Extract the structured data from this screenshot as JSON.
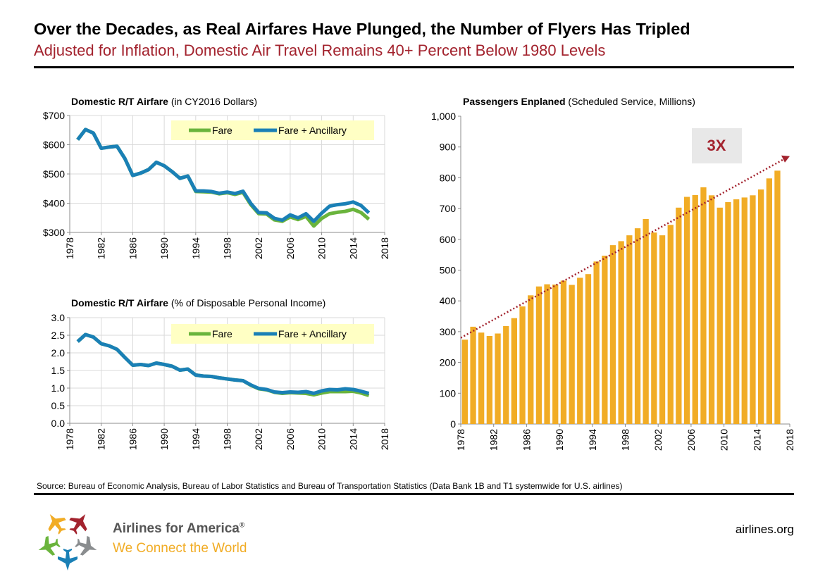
{
  "header": {
    "title": "Over the Decades, as Real Airfares Have Plunged, the Number of Flyers Has Tripled",
    "subtitle": "Adjusted for Inflation, Domestic Air Travel Remains 40+ Percent Below 1980 Levels"
  },
  "footer": {
    "source": "Source: Bureau of Economic Analysis, Bureau of Labor Statistics and Bureau of Transportation Statistics (Data Bank 1B and T1 systemwide for U.S. airlines)",
    "brand_name": "Airlines for America",
    "brand_mark": "®",
    "tagline": "We Connect the World",
    "site": "airlines.org"
  },
  "colors": {
    "fare": "#6ab43c",
    "fare_ancillary": "#1a80b6",
    "bars": "#f1ac25",
    "trend": "#a3232e",
    "subtitle": "#a3232e",
    "legend_bg": "#ffffc4"
  },
  "chart_data": [
    {
      "type": "line",
      "title_bold": "Domestic R/T Airfare",
      "title_rest": " (in CY2016 Dollars)",
      "xlim": [
        1978,
        2018
      ],
      "x_ticks": [
        1978,
        1982,
        1986,
        1990,
        1994,
        1998,
        2002,
        2006,
        2010,
        2014,
        2018
      ],
      "ylim": [
        300,
        700
      ],
      "y_ticks": [
        300,
        400,
        500,
        600,
        700
      ],
      "y_tick_labels": [
        "$300",
        "$400",
        "$500",
        "$600",
        "$700"
      ],
      "grid": true,
      "legend": "top-right",
      "series": [
        {
          "name": "Fare",
          "x": [
            1979,
            1980,
            1981,
            1982,
            1983,
            1984,
            1985,
            1986,
            1987,
            1988,
            1989,
            1990,
            1991,
            1992,
            1993,
            1994,
            1995,
            1996,
            1997,
            1998,
            1999,
            2000,
            2001,
            2002,
            2003,
            2004,
            2005,
            2006,
            2007,
            2008,
            2009,
            2010,
            2011,
            2012,
            2013,
            2014,
            2015,
            2016
          ],
          "y": [
            617,
            652,
            640,
            588,
            592,
            595,
            553,
            495,
            503,
            515,
            540,
            528,
            508,
            485,
            493,
            440,
            439,
            438,
            432,
            436,
            430,
            437,
            395,
            364,
            363,
            343,
            338,
            353,
            344,
            355,
            322,
            348,
            364,
            369,
            372,
            379,
            368,
            345
          ]
        },
        {
          "name": "Fare + Ancillary",
          "x": [
            1979,
            1980,
            1981,
            1982,
            1983,
            1984,
            1985,
            1986,
            1987,
            1988,
            1989,
            1990,
            1991,
            1992,
            1993,
            1994,
            1995,
            1996,
            1997,
            1998,
            1999,
            2000,
            2001,
            2002,
            2003,
            2004,
            2005,
            2006,
            2007,
            2008,
            2009,
            2010,
            2011,
            2012,
            2013,
            2014,
            2015,
            2016
          ],
          "y": [
            617,
            652,
            640,
            588,
            592,
            595,
            553,
            495,
            503,
            515,
            540,
            528,
            508,
            485,
            493,
            442,
            442,
            440,
            434,
            438,
            433,
            441,
            399,
            368,
            367,
            348,
            342,
            360,
            350,
            364,
            338,
            366,
            390,
            395,
            398,
            404,
            392,
            367
          ]
        }
      ]
    },
    {
      "type": "line",
      "title_bold": "Domestic R/T Airfare",
      "title_rest": " (% of Disposable Personal Income)",
      "xlim": [
        1978,
        2018
      ],
      "x_ticks": [
        1978,
        1982,
        1986,
        1990,
        1994,
        1998,
        2002,
        2006,
        2010,
        2014,
        2018
      ],
      "ylim": [
        0,
        3
      ],
      "y_ticks": [
        0,
        0.5,
        1,
        1.5,
        2,
        2.5,
        3
      ],
      "y_tick_labels": [
        "0.0",
        "0.5",
        "1.0",
        "1.5",
        "2.0",
        "2.5",
        "3.0"
      ],
      "grid": true,
      "legend": "top-right",
      "series": [
        {
          "name": "Fare",
          "x": [
            1979,
            1980,
            1981,
            1982,
            1983,
            1984,
            1985,
            1986,
            1987,
            1988,
            1989,
            1990,
            1991,
            1992,
            1993,
            1994,
            1995,
            1996,
            1997,
            1998,
            1999,
            2000,
            2001,
            2002,
            2003,
            2004,
            2005,
            2006,
            2007,
            2008,
            2009,
            2010,
            2011,
            2012,
            2013,
            2014,
            2015,
            2016
          ],
          "y": [
            2.32,
            2.52,
            2.45,
            2.26,
            2.2,
            2.1,
            1.87,
            1.65,
            1.67,
            1.64,
            1.71,
            1.67,
            1.62,
            1.51,
            1.54,
            1.37,
            1.34,
            1.33,
            1.29,
            1.26,
            1.23,
            1.21,
            1.08,
            0.98,
            0.95,
            0.88,
            0.85,
            0.87,
            0.86,
            0.85,
            0.81,
            0.86,
            0.9,
            0.9,
            0.9,
            0.91,
            0.86,
            0.79
          ]
        },
        {
          "name": "Fare + Ancillary",
          "x": [
            1979,
            1980,
            1981,
            1982,
            1983,
            1984,
            1985,
            1986,
            1987,
            1988,
            1989,
            1990,
            1991,
            1992,
            1993,
            1994,
            1995,
            1996,
            1997,
            1998,
            1999,
            2000,
            2001,
            2002,
            2003,
            2004,
            2005,
            2006,
            2007,
            2008,
            2009,
            2010,
            2011,
            2012,
            2013,
            2014,
            2015,
            2016
          ],
          "y": [
            2.32,
            2.52,
            2.45,
            2.26,
            2.2,
            2.1,
            1.87,
            1.65,
            1.67,
            1.64,
            1.71,
            1.67,
            1.62,
            1.51,
            1.54,
            1.37,
            1.34,
            1.33,
            1.29,
            1.26,
            1.23,
            1.21,
            1.09,
            0.99,
            0.96,
            0.89,
            0.87,
            0.89,
            0.88,
            0.9,
            0.85,
            0.92,
            0.96,
            0.95,
            0.98,
            0.96,
            0.91,
            0.85
          ]
        }
      ]
    },
    {
      "type": "bar",
      "title_bold": "Passengers Enplaned",
      "title_rest": " (Scheduled Service, Millions)",
      "xlim": [
        1978,
        2018
      ],
      "x_ticks": [
        1978,
        1982,
        1986,
        1990,
        1994,
        1998,
        2002,
        2006,
        2010,
        2014,
        2018
      ],
      "ylim": [
        0,
        1000
      ],
      "y_ticks": [
        0,
        100,
        200,
        300,
        400,
        500,
        600,
        700,
        800,
        900,
        1000
      ],
      "y_tick_labels": [
        "0",
        "100",
        "200",
        "300",
        "400",
        "500",
        "600",
        "700",
        "800",
        "900",
        "1,000"
      ],
      "grid": false,
      "x": [
        1978,
        1979,
        1980,
        1981,
        1982,
        1983,
        1984,
        1985,
        1986,
        1987,
        1988,
        1989,
        1990,
        1991,
        1992,
        1993,
        1994,
        1995,
        1996,
        1997,
        1998,
        1999,
        2000,
        2001,
        2002,
        2003,
        2004,
        2005,
        2006,
        2007,
        2008,
        2009,
        2010,
        2011,
        2012,
        2013,
        2014,
        2015,
        2016
      ],
      "values": [
        274,
        316,
        297,
        286,
        294,
        318,
        344,
        382,
        418,
        447,
        454,
        453,
        466,
        452,
        475,
        487,
        528,
        547,
        581,
        594,
        613,
        636,
        666,
        622,
        613,
        647,
        703,
        738,
        744,
        769,
        743,
        703,
        721,
        730,
        736,
        743,
        762,
        798,
        823
      ],
      "annotation": "3X",
      "trend": {
        "from": [
          1978,
          280
        ],
        "to": [
          2018,
          870
        ]
      }
    }
  ]
}
